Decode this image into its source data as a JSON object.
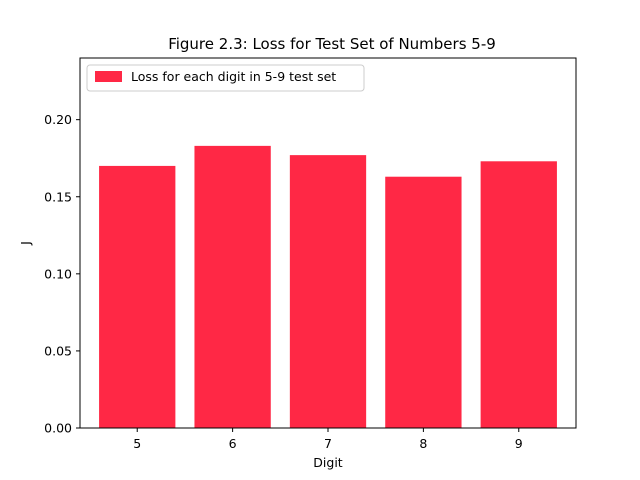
{
  "chart_data": {
    "type": "bar",
    "title": "Figure 2.3: Loss for Test Set of Numbers 5-9",
    "xlabel": "Digit",
    "ylabel": "J",
    "categories": [
      "5",
      "6",
      "7",
      "8",
      "9"
    ],
    "series": [
      {
        "name": "Loss for each digit in 5-9 test set",
        "values": [
          0.17,
          0.183,
          0.177,
          0.163,
          0.173
        ],
        "color": "#ff2845"
      }
    ],
    "ylim": [
      0,
      0.24
    ],
    "yticks": [
      0.0,
      0.05,
      0.1,
      0.15,
      0.2
    ],
    "ytick_labels": [
      "0.00",
      "0.05",
      "0.10",
      "0.15",
      "0.20"
    ],
    "grid": false,
    "legend_position": "top-left"
  }
}
